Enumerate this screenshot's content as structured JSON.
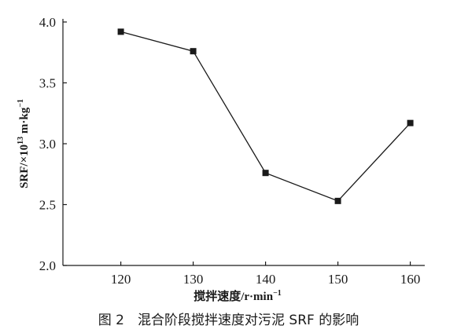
{
  "chart_data": {
    "type": "line",
    "x": [
      120,
      130,
      140,
      150,
      160
    ],
    "series": [
      {
        "values": [
          3.92,
          3.76,
          2.76,
          2.53,
          3.17
        ]
      }
    ],
    "xlabel": "搅拌速度/r·min",
    "xlabel_sup": "−1",
    "ylabel": "SRF/×10",
    "ylabel_sup1": "13",
    "ylabel_mid": " m·kg",
    "ylabel_sup2": "−1",
    "x_ticks": [
      "120",
      "130",
      "140",
      "150",
      "160"
    ],
    "y_ticks": [
      "4.0",
      "3.5",
      "3.0",
      "2.5",
      "2.0"
    ],
    "xlim": [
      112,
      162
    ],
    "ylim": [
      2.0,
      4.0
    ],
    "grid": false,
    "line_color": "#1a1a1a",
    "marker": "square"
  },
  "caption": "图 2　混合阶段搅拌速度对污泥 SRF 的影响"
}
